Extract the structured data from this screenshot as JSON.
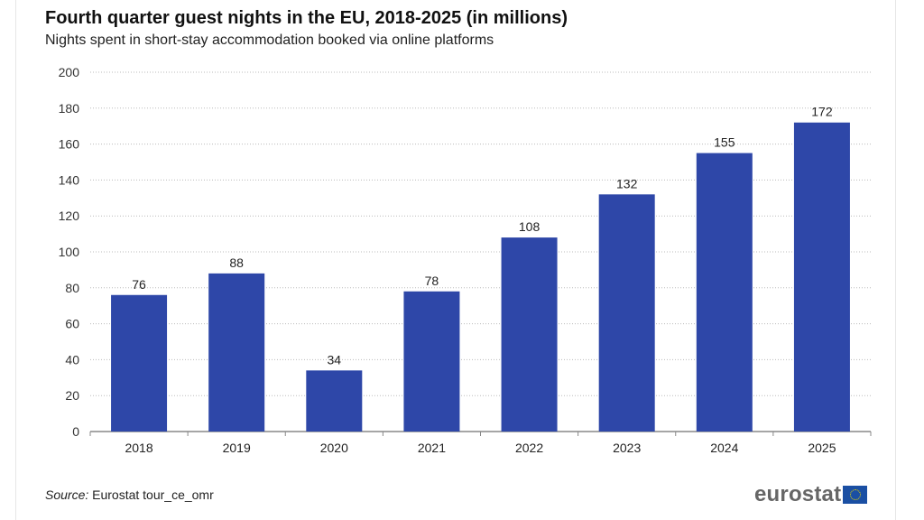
{
  "chart_data": {
    "type": "bar",
    "title": "Fourth quarter guest nights in the EU, 2018-2025 (in millions)",
    "subtitle": "Nights spent in short-stay accommodation booked via online platforms",
    "categories": [
      "2018",
      "2019",
      "2020",
      "2021",
      "2022",
      "2023",
      "2024",
      "2025"
    ],
    "values": [
      76,
      88,
      34,
      78,
      108,
      132,
      155,
      172
    ],
    "xlabel": "",
    "ylabel": "",
    "ylim": [
      0,
      200
    ],
    "yticks": [
      0,
      20,
      40,
      60,
      80,
      100,
      120,
      140,
      160,
      180,
      200
    ],
    "grid": true,
    "legend": "none",
    "bar_color": "#2e47a8"
  },
  "footer": {
    "source_label": "Source:",
    "source_text": " Eurostat tour_ce_omr",
    "logo_text": "eurostat"
  }
}
